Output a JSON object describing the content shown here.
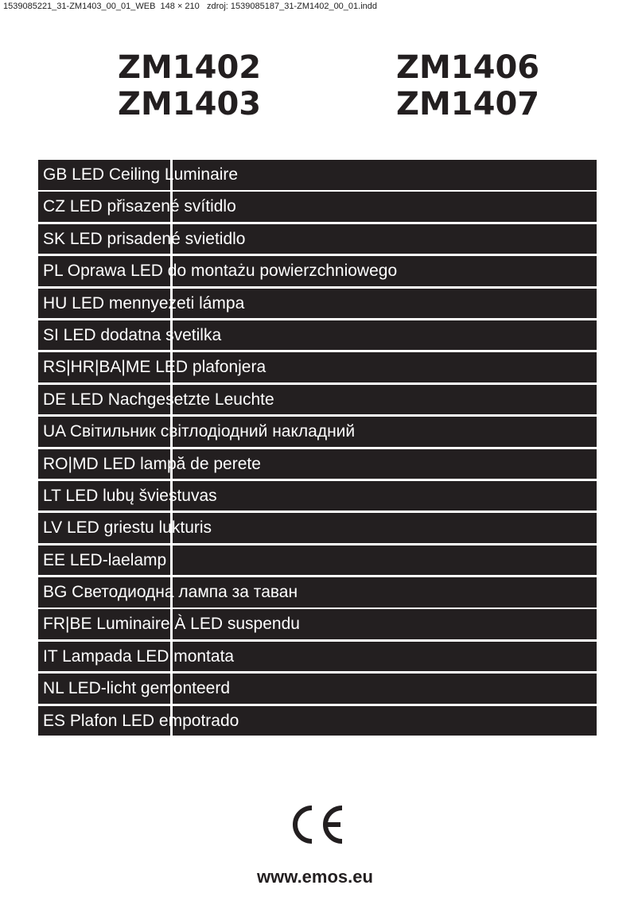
{
  "slug": "1539085221_31-ZM1403_00_01_WEB  148 × 210   zdroj: 1539085187_31-ZM1402_00_01.indd",
  "models_left": [
    "ZM1402",
    "ZM1403"
  ],
  "models_right": [
    "ZM1406",
    "ZM1407"
  ],
  "titles": [
    "GB LED Ceiling Luminaire",
    "CZ LED přisazené svítidlo",
    "SK LED prisadené svietidlo",
    "PL Oprawa LED do montażu powierzchniowego",
    "HU LED mennyezeti lámpa",
    "SI LED dodatna svetilka",
    "RS|HR|BA|ME LED plafonjera",
    "DE LED Nachgesetzte Leuchte",
    "UA Світильник світлодіодний накладний",
    "RO|MD LED lampă de perete",
    "LT LED lubų šviestuvas",
    "LV LED griestu lukturis",
    "EE LED-laelamp",
    "BG Светодиодна лампа за таван",
    "FR|BE Luminaire À LED suspendu",
    "IT Lampada LED montata",
    "NL LED-licht gemonteerd",
    "ES Plafon LED empotrado"
  ],
  "ce_mark": "CE",
  "url": "www.emos.eu",
  "colors": {
    "bar": "#231f20",
    "text_on_bar": "#ffffff"
  }
}
